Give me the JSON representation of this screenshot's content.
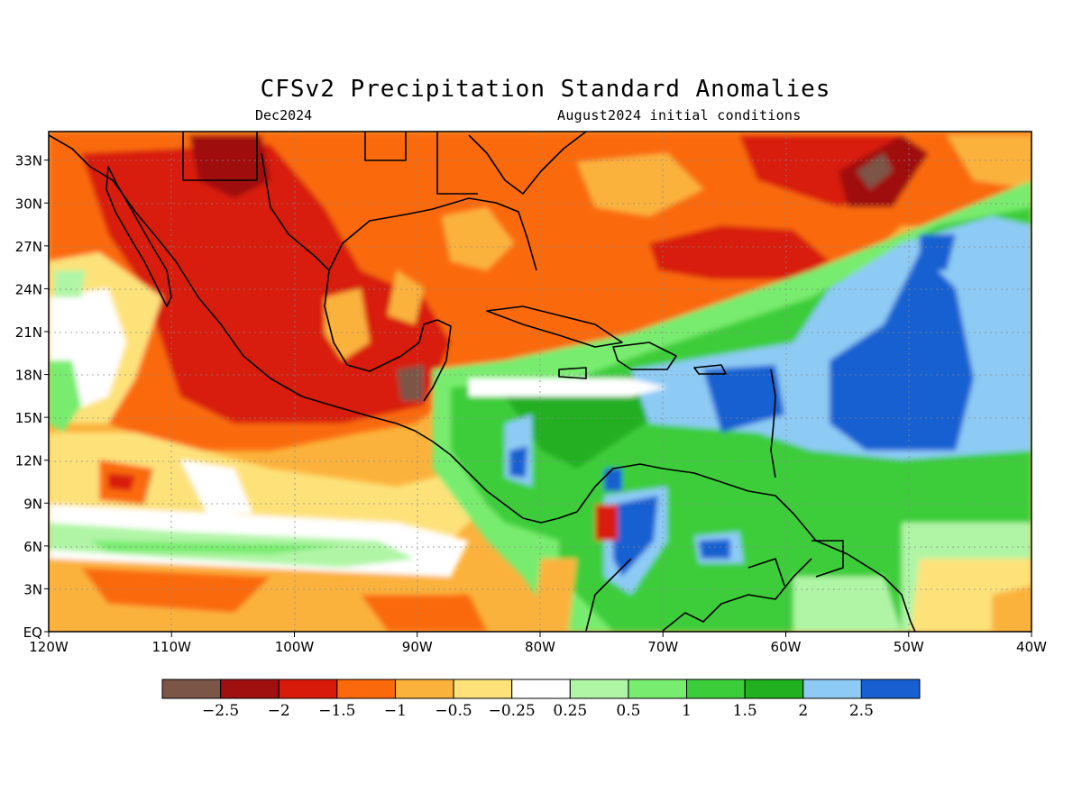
{
  "title": "CFSv2 Precipitation Standard Anomalies",
  "subtitle_left": "Dec2024",
  "subtitle_right": "August2024 initial conditions",
  "map": {
    "lon_range": [
      -120,
      -40
    ],
    "lat_range": [
      0,
      35
    ],
    "lon_ticks": [
      "120W",
      "110W",
      "100W",
      "90W",
      "80W",
      "70W",
      "60W",
      "50W",
      "40W"
    ],
    "lat_ticks": [
      "EQ",
      "3N",
      "6N",
      "9N",
      "12N",
      "15N",
      "18N",
      "21N",
      "24N",
      "27N",
      "30N",
      "33N"
    ],
    "gridlines": "dotted",
    "coastlines": true
  },
  "colorbar": {
    "colors": [
      "#7b5546",
      "#a01010",
      "#d81a0a",
      "#fa6a0c",
      "#fbb23c",
      "#fde27a",
      "#ffffff",
      "#b0f5a6",
      "#78ec6e",
      "#3ccd3a",
      "#20b020",
      "#8dcbf5",
      "#1860d2"
    ],
    "labels": [
      "−2.5",
      "−2",
      "−1.5",
      "−1",
      "−0.5",
      "−0.25",
      "0.25",
      "0.5",
      "1",
      "1.5",
      "2",
      "2.5"
    ]
  }
}
